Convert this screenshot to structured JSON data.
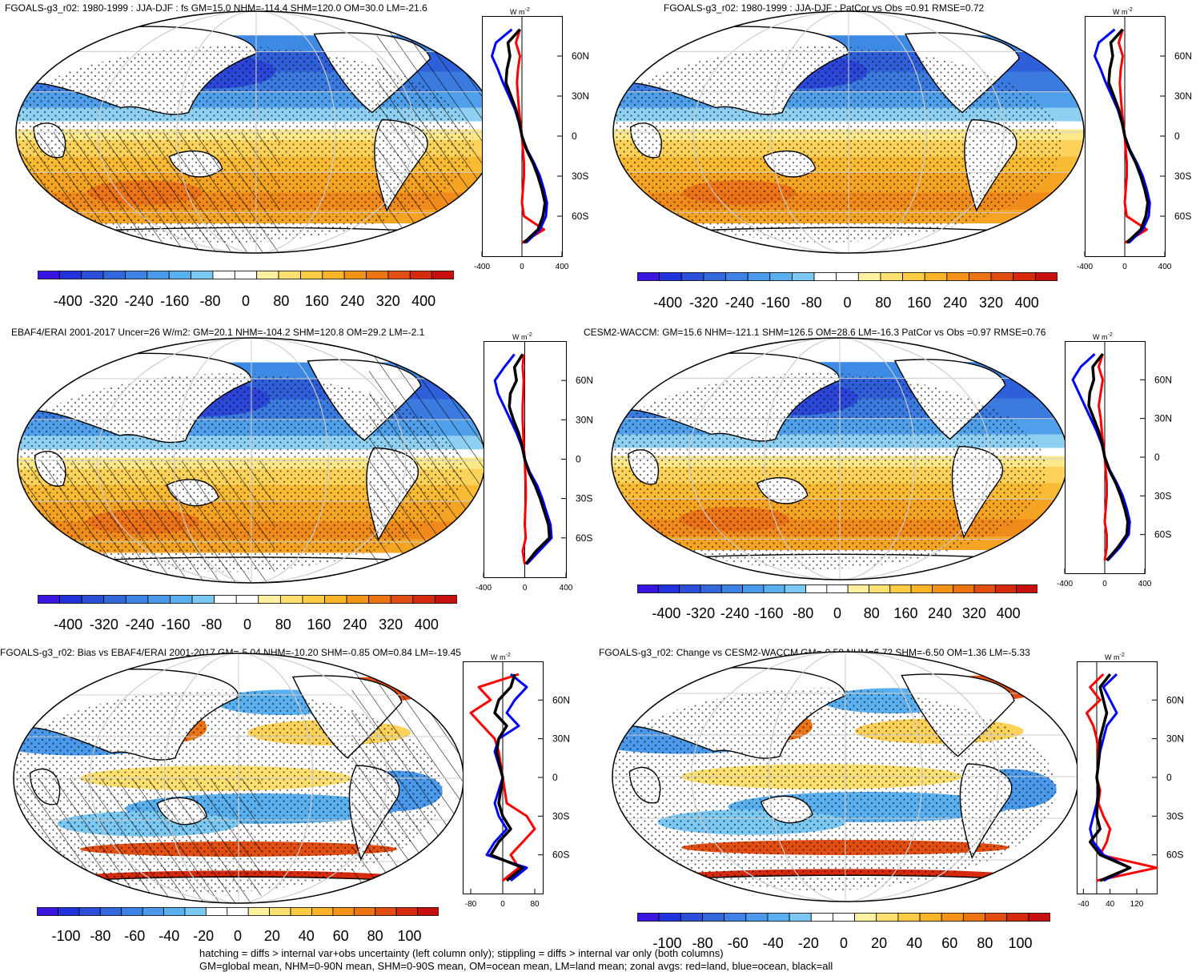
{
  "chart_data": [
    {
      "type": "heatmap",
      "title": "FGOALS-g3_r02: 1980-1999 : JJA-DJF : fs GM=15.0 NHM=-114.4 SHM=120.0 OM=30.0 LM=-21.6",
      "map_style": "mean_hatch",
      "zonal_units": "W m",
      "zonal_units_exp": "-2",
      "zonal_xticks": [
        "-400",
        "0",
        "400"
      ],
      "zonal_xlim": [
        -400,
        400
      ],
      "zonal_yticks": [
        "60N",
        "30N",
        "0",
        "30S",
        "60S"
      ],
      "colorbar_labels": [
        "-400",
        "-320",
        "-240",
        "-160",
        "-80",
        "0",
        "80",
        "160",
        "240",
        "320",
        "400"
      ],
      "zonal_series": [
        {
          "name": "land",
          "color": "#ff0000",
          "lat": [
            80,
            70,
            60,
            50,
            40,
            30,
            20,
            10,
            0,
            -10,
            -20,
            -30,
            -40,
            -50,
            -60,
            -70,
            -80
          ],
          "values": [
            -20,
            -60,
            -20,
            -40,
            -50,
            -40,
            -30,
            -15,
            0,
            10,
            20,
            20,
            10,
            0,
            20,
            220,
            0
          ]
        },
        {
          "name": "ocean",
          "color": "#0000ff",
          "lat": [
            80,
            70,
            60,
            50,
            40,
            30,
            20,
            10,
            0,
            -10,
            -20,
            -30,
            -40,
            -50,
            -60,
            -70,
            -80
          ],
          "values": [
            -100,
            -260,
            -300,
            -240,
            -190,
            -130,
            -70,
            -30,
            0,
            50,
            120,
            180,
            220,
            250,
            240,
            180,
            40
          ]
        },
        {
          "name": "all",
          "color": "#000000",
          "lat": [
            80,
            70,
            60,
            50,
            40,
            30,
            20,
            10,
            0,
            -10,
            -20,
            -30,
            -40,
            -50,
            -60,
            -70,
            -80
          ],
          "values": [
            -20,
            -140,
            -120,
            -150,
            -160,
            -110,
            -60,
            -25,
            0,
            45,
            110,
            160,
            200,
            230,
            210,
            160,
            20
          ]
        }
      ]
    },
    {
      "type": "heatmap",
      "title": "FGOALS-g3_r02: 1980-1999 : JJA-DJF : PatCor vs Obs =0.91 RMSE=0.72",
      "map_style": "mean",
      "zonal_units": "W m",
      "zonal_units_exp": "-2",
      "zonal_xticks": [
        "-400",
        "0",
        "400"
      ],
      "zonal_xlim": [
        -400,
        400
      ],
      "zonal_yticks": [
        "60N",
        "30N",
        "0",
        "30S",
        "60S"
      ],
      "colorbar_labels": [
        "-400",
        "-320",
        "-240",
        "-160",
        "-80",
        "0",
        "80",
        "160",
        "240",
        "320",
        "400"
      ],
      "zonal_series": [
        {
          "name": "land",
          "color": "#ff0000",
          "lat": [
            80,
            70,
            60,
            50,
            40,
            30,
            20,
            10,
            0,
            -10,
            -20,
            -30,
            -40,
            -50,
            -60,
            -70,
            -80
          ],
          "values": [
            -20,
            -60,
            -20,
            -40,
            -50,
            -40,
            -30,
            -15,
            0,
            10,
            20,
            20,
            10,
            0,
            20,
            220,
            0
          ]
        },
        {
          "name": "ocean",
          "color": "#0000ff",
          "lat": [
            80,
            70,
            60,
            50,
            40,
            30,
            20,
            10,
            0,
            -10,
            -20,
            -30,
            -40,
            -50,
            -60,
            -70,
            -80
          ],
          "values": [
            -100,
            -260,
            -300,
            -240,
            -190,
            -130,
            -70,
            -30,
            0,
            50,
            120,
            180,
            220,
            250,
            240,
            180,
            40
          ]
        },
        {
          "name": "all",
          "color": "#000000",
          "lat": [
            80,
            70,
            60,
            50,
            40,
            30,
            20,
            10,
            0,
            -10,
            -20,
            -30,
            -40,
            -50,
            -60,
            -70,
            -80
          ],
          "values": [
            -20,
            -140,
            -120,
            -150,
            -160,
            -110,
            -60,
            -25,
            0,
            45,
            110,
            160,
            200,
            230,
            210,
            160,
            20
          ]
        }
      ]
    },
    {
      "type": "heatmap",
      "title": "EBAF4/ERAI 2001-2017 Uncer=26 W/m2: GM=20.1 NHM=-104.2 SHM=120.8 OM=29.2 LM=-2.1",
      "map_style": "mean_hatch",
      "zonal_units": "W m",
      "zonal_units_exp": "-2",
      "zonal_xticks": [
        "-400",
        "0",
        "400"
      ],
      "zonal_xlim": [
        -400,
        400
      ],
      "zonal_yticks": [
        "60N",
        "30N",
        "0",
        "30S",
        "60S"
      ],
      "colorbar_labels": [
        "-400",
        "-320",
        "-240",
        "-160",
        "-80",
        "0",
        "80",
        "160",
        "240",
        "320",
        "400"
      ],
      "zonal_series": [
        {
          "name": "land",
          "color": "#ff0000",
          "lat": [
            80,
            70,
            60,
            50,
            40,
            30,
            20,
            10,
            0,
            -10,
            -20,
            -30,
            -40,
            -50,
            -60,
            -70,
            -80
          ],
          "values": [
            -10,
            -20,
            -10,
            -15,
            -20,
            -20,
            -15,
            -10,
            0,
            5,
            10,
            10,
            5,
            0,
            10,
            -20,
            0
          ]
        },
        {
          "name": "ocean",
          "color": "#0000ff",
          "lat": [
            80,
            70,
            60,
            50,
            40,
            30,
            20,
            10,
            0,
            -10,
            -20,
            -30,
            -40,
            -50,
            -60,
            -70,
            -80
          ],
          "values": [
            -100,
            -200,
            -290,
            -260,
            -200,
            -140,
            -80,
            -30,
            0,
            50,
            120,
            170,
            210,
            250,
            260,
            140,
            20
          ]
        },
        {
          "name": "all",
          "color": "#000000",
          "lat": [
            80,
            70,
            60,
            50,
            40,
            30,
            20,
            10,
            0,
            -10,
            -20,
            -30,
            -40,
            -50,
            -60,
            -70,
            -80
          ],
          "values": [
            -20,
            -100,
            -80,
            -140,
            -150,
            -110,
            -60,
            -25,
            0,
            40,
            100,
            150,
            190,
            230,
            240,
            110,
            10
          ]
        }
      ]
    },
    {
      "type": "heatmap",
      "title": "CESM2-WACCM: GM=15.6 NHM=-121.1 SHM=126.5 OM=28.6 LM=-16.3 PatCor vs Obs =0.97 RMSE=0.76",
      "map_style": "mean",
      "zonal_units": "W m",
      "zonal_units_exp": "-2",
      "zonal_xticks": [
        "-400",
        "0",
        "400"
      ],
      "zonal_xlim": [
        -400,
        400
      ],
      "zonal_yticks": [
        "60N",
        "30N",
        "0",
        "30S",
        "60S"
      ],
      "colorbar_labels": [
        "-400",
        "-320",
        "-240",
        "-160",
        "-80",
        "0",
        "80",
        "160",
        "240",
        "320",
        "400"
      ],
      "zonal_series": [
        {
          "name": "land",
          "color": "#ff0000",
          "lat": [
            80,
            70,
            60,
            50,
            40,
            30,
            20,
            10,
            0,
            -10,
            -20,
            -30,
            -40,
            -50,
            -60,
            -70,
            -80
          ],
          "values": [
            -20,
            -60,
            -20,
            -40,
            -60,
            -40,
            -30,
            -15,
            0,
            10,
            20,
            20,
            10,
            0,
            20,
            20,
            0
          ]
        },
        {
          "name": "ocean",
          "color": "#0000ff",
          "lat": [
            80,
            70,
            60,
            50,
            40,
            30,
            20,
            10,
            0,
            -10,
            -20,
            -30,
            -40,
            -50,
            -60,
            -70,
            -80
          ],
          "values": [
            -100,
            -240,
            -320,
            -260,
            -200,
            -140,
            -80,
            -30,
            0,
            50,
            120,
            180,
            220,
            250,
            240,
            150,
            30
          ]
        },
        {
          "name": "all",
          "color": "#000000",
          "lat": [
            80,
            70,
            60,
            50,
            40,
            30,
            20,
            10,
            0,
            -10,
            -20,
            -30,
            -40,
            -50,
            -60,
            -70,
            -80
          ],
          "values": [
            -20,
            -120,
            -110,
            -150,
            -160,
            -110,
            -60,
            -25,
            0,
            45,
            110,
            160,
            200,
            230,
            220,
            130,
            20
          ]
        }
      ]
    },
    {
      "type": "heatmap",
      "title": "FGOALS-g3_r02: Bias vs EBAF4/ERAI 2001-2017 GM=-5.04 NHM=-10.20 SHM=-0.85 OM=0.84 LM=-19.45",
      "map_style": "diff_hatch",
      "zonal_units": "W m",
      "zonal_units_exp": "-2",
      "zonal_xticks": [
        "-80",
        "0",
        "80"
      ],
      "zonal_xlim": [
        -100,
        100
      ],
      "zonal_yticks": [
        "60N",
        "30N",
        "0",
        "30S",
        "60S"
      ],
      "colorbar_labels": [
        "-100",
        "-80",
        "-60",
        "-40",
        "-20",
        "0",
        "20",
        "40",
        "60",
        "80",
        "100"
      ],
      "zonal_series": [
        {
          "name": "land",
          "color": "#ff0000",
          "lat": [
            80,
            70,
            60,
            50,
            40,
            30,
            20,
            10,
            0,
            -10,
            -20,
            -30,
            -40,
            -50,
            -60,
            -70,
            -80
          ],
          "values": [
            40,
            -60,
            -30,
            -80,
            -50,
            -20,
            -10,
            -5,
            0,
            5,
            10,
            60,
            80,
            50,
            20,
            40,
            0
          ]
        },
        {
          "name": "ocean",
          "color": "#0000ff",
          "lat": [
            80,
            70,
            60,
            50,
            40,
            30,
            20,
            10,
            0,
            -10,
            -20,
            -30,
            -40,
            -50,
            -60,
            -70,
            -80
          ],
          "values": [
            20,
            60,
            30,
            10,
            40,
            -10,
            -20,
            -10,
            0,
            -10,
            -20,
            -10,
            10,
            -20,
            -40,
            60,
            20
          ]
        },
        {
          "name": "all",
          "color": "#000000",
          "lat": [
            80,
            70,
            60,
            50,
            40,
            30,
            20,
            10,
            0,
            -10,
            -20,
            -30,
            -40,
            -50,
            -60,
            -70,
            -80
          ],
          "values": [
            30,
            20,
            -10,
            -20,
            10,
            -10,
            -15,
            -8,
            0,
            -5,
            -10,
            0,
            20,
            -10,
            -30,
            50,
            10
          ]
        }
      ]
    },
    {
      "type": "heatmap",
      "title": "FGOALS-g3_r02: Change vs CESM2-WACCM GM=-0.58 NHM=6.72 SHM=-6.50 OM=1.36 LM=-5.33",
      "map_style": "diff",
      "zonal_units": "W m",
      "zonal_units_exp": "-2",
      "zonal_xticks": [
        "-40",
        "40",
        "120"
      ],
      "zonal_xlim": [
        -60,
        180
      ],
      "zonal_yticks": [
        "60N",
        "30N",
        "0",
        "30S",
        "60S"
      ],
      "colorbar_labels": [
        "-100",
        "-80",
        "-60",
        "-40",
        "-20",
        "0",
        "20",
        "40",
        "60",
        "80",
        "100"
      ],
      "zonal_series": [
        {
          "name": "land",
          "color": "#ff0000",
          "lat": [
            80,
            70,
            60,
            50,
            40,
            30,
            20,
            10,
            0,
            -10,
            -20,
            -30,
            -40,
            -50,
            -60,
            -70,
            -80
          ],
          "values": [
            20,
            -20,
            10,
            -30,
            -10,
            0,
            5,
            5,
            0,
            10,
            5,
            20,
            40,
            30,
            10,
            180,
            0
          ]
        },
        {
          "name": "ocean",
          "color": "#0000ff",
          "lat": [
            80,
            70,
            60,
            50,
            40,
            30,
            20,
            10,
            0,
            -10,
            -20,
            -30,
            -40,
            -50,
            -60,
            -70,
            -80
          ],
          "values": [
            60,
            20,
            40,
            60,
            30,
            20,
            10,
            5,
            0,
            5,
            0,
            -10,
            -20,
            -10,
            20,
            100,
            20
          ]
        },
        {
          "name": "all",
          "color": "#000000",
          "lat": [
            80,
            70,
            60,
            50,
            40,
            30,
            20,
            10,
            0,
            -10,
            -20,
            -30,
            -40,
            -50,
            -60,
            -70,
            -80
          ],
          "values": [
            40,
            10,
            20,
            30,
            20,
            10,
            8,
            5,
            0,
            6,
            2,
            0,
            10,
            -20,
            10,
            100,
            10
          ]
        }
      ]
    }
  ],
  "footer": {
    "line1": "hatching = diffs > internal var+obs uncertainty (left column only); stippling = diffs > internal var only (both columns)",
    "line2": "GM=global mean, NHM=0-90N mean, SHM=0-90S mean, OM=ocean mean, LM=land mean; zonal avgs: red=land, blue=ocean, black=all"
  }
}
